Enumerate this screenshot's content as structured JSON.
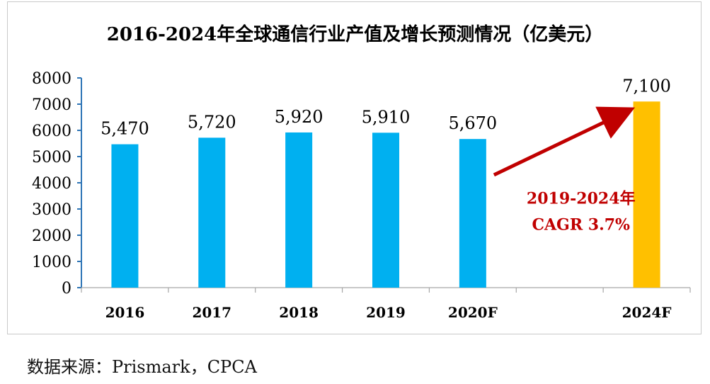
{
  "chart_data": {
    "type": "bar",
    "title": "2016-2024年全球通信行业产值及增长预测情况（亿美元）",
    "categories": [
      "2016",
      "2017",
      "2018",
      "2019",
      "2020F",
      "2024F"
    ],
    "values": [
      5470,
      5720,
      5920,
      5910,
      5670,
      7100
    ],
    "value_labels": [
      "5,470",
      "5,720",
      "5,920",
      "5,910",
      "5,670",
      "7,100"
    ],
    "bar_colors": [
      "#00b0f0",
      "#00b0f0",
      "#00b0f0",
      "#00b0f0",
      "#00b0f0",
      "#ffc000"
    ],
    "ylim": [
      0,
      8000
    ],
    "yticks": [
      0,
      1000,
      2000,
      3000,
      4000,
      5000,
      6000,
      7000,
      8000
    ],
    "xlabel": "",
    "ylabel": "",
    "annotation": {
      "line1": "2019-2024年",
      "line2": "CAGR 3.7%",
      "color": "#c00000"
    }
  },
  "source": "数据来源：Prismark，CPCA"
}
